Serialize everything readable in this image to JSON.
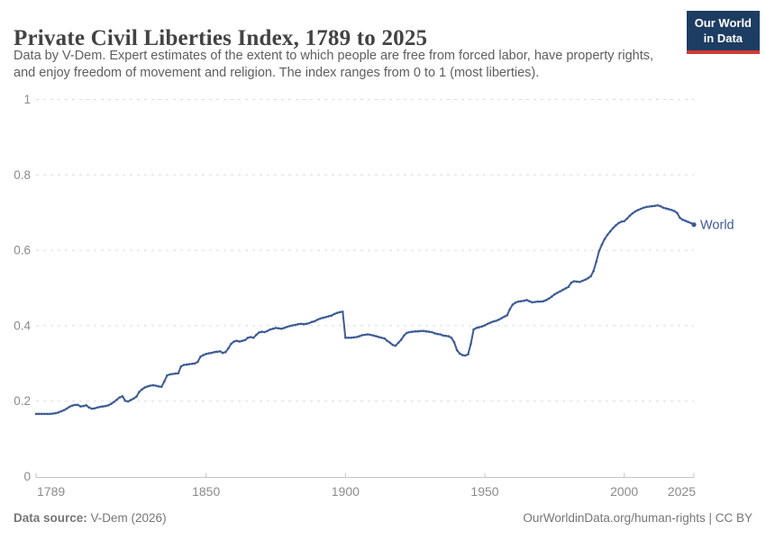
{
  "header": {
    "title": "Private Civil Liberties Index, 1789 to 2025",
    "subtitle_lines": [
      "Data by V-Dem. Expert estimates of the extent to which people are free from forced labor, have property rights,",
      "and enjoy freedom of movement and religion. The index ranges from 0 to 1 (most liberties)."
    ],
    "logo_lines": [
      "Our World",
      "in Data"
    ]
  },
  "chart_data": {
    "type": "line",
    "title": "Private Civil Liberties Index, 1789 to 2025",
    "xlabel": "",
    "ylabel": "",
    "xlim": [
      1789,
      2025
    ],
    "ylim": [
      0,
      1
    ],
    "x_ticks": [
      "1789",
      "1850",
      "1900",
      "1950",
      "2000",
      "2025"
    ],
    "y_ticks": [
      "0",
      "0.2",
      "0.4",
      "0.6",
      "0.8",
      "1"
    ],
    "grid": "horizontal-dashed",
    "legend_position": "end-of-line-label",
    "series": [
      {
        "name": "World",
        "color": "#3d5c94",
        "start_year": 1789,
        "end_year": 2025,
        "values": [
          0.166,
          0.166,
          0.166,
          0.166,
          0.166,
          0.166,
          0.167,
          0.168,
          0.17,
          0.173,
          0.176,
          0.18,
          0.185,
          0.188,
          0.19,
          0.19,
          0.186,
          0.187,
          0.189,
          0.183,
          0.18,
          0.181,
          0.183,
          0.185,
          0.186,
          0.187,
          0.189,
          0.193,
          0.198,
          0.204,
          0.21,
          0.213,
          0.201,
          0.199,
          0.203,
          0.207,
          0.212,
          0.224,
          0.231,
          0.236,
          0.239,
          0.241,
          0.242,
          0.241,
          0.239,
          0.238,
          0.252,
          0.268,
          0.271,
          0.272,
          0.273,
          0.274,
          0.292,
          0.296,
          0.297,
          0.298,
          0.299,
          0.3,
          0.304,
          0.318,
          0.322,
          0.325,
          0.327,
          0.328,
          0.33,
          0.331,
          0.332,
          0.328,
          0.33,
          0.34,
          0.352,
          0.358,
          0.36,
          0.358,
          0.36,
          0.362,
          0.368,
          0.37,
          0.368,
          0.376,
          0.382,
          0.384,
          0.383,
          0.386,
          0.39,
          0.392,
          0.394,
          0.393,
          0.392,
          0.394,
          0.397,
          0.399,
          0.401,
          0.402,
          0.404,
          0.405,
          0.404,
          0.405,
          0.407,
          0.41,
          0.412,
          0.416,
          0.419,
          0.421,
          0.423,
          0.425,
          0.427,
          0.431,
          0.434,
          0.436,
          0.437,
          0.368,
          0.368,
          0.368,
          0.369,
          0.37,
          0.372,
          0.375,
          0.376,
          0.377,
          0.376,
          0.374,
          0.372,
          0.37,
          0.368,
          0.366,
          0.36,
          0.355,
          0.349,
          0.347,
          0.355,
          0.363,
          0.374,
          0.381,
          0.383,
          0.384,
          0.385,
          0.385,
          0.386,
          0.386,
          0.385,
          0.384,
          0.383,
          0.38,
          0.378,
          0.377,
          0.374,
          0.373,
          0.372,
          0.368,
          0.356,
          0.335,
          0.326,
          0.322,
          0.321,
          0.324,
          0.352,
          0.39,
          0.394,
          0.396,
          0.398,
          0.401,
          0.405,
          0.408,
          0.411,
          0.413,
          0.416,
          0.42,
          0.424,
          0.428,
          0.444,
          0.456,
          0.461,
          0.464,
          0.465,
          0.466,
          0.468,
          0.465,
          0.462,
          0.463,
          0.464,
          0.464,
          0.465,
          0.468,
          0.472,
          0.477,
          0.483,
          0.487,
          0.491,
          0.495,
          0.499,
          0.503,
          0.514,
          0.518,
          0.517,
          0.516,
          0.519,
          0.522,
          0.526,
          0.531,
          0.545,
          0.57,
          0.598,
          0.615,
          0.63,
          0.641,
          0.65,
          0.659,
          0.666,
          0.672,
          0.676,
          0.677,
          0.684,
          0.692,
          0.698,
          0.703,
          0.707,
          0.71,
          0.713,
          0.715,
          0.716,
          0.717,
          0.718,
          0.719,
          0.717,
          0.713,
          0.711,
          0.709,
          0.707,
          0.704,
          0.699,
          0.686,
          0.681,
          0.678,
          0.675,
          0.672,
          0.668
        ]
      }
    ]
  },
  "footer": {
    "source_bold": "Data source:",
    "source_rest": " V-Dem (2026)",
    "credit": "OurWorldinData.org/human-rights | CC BY"
  },
  "colors": {
    "series": "#3d5c94",
    "grid": "#dcdcdc",
    "axis": "#c4c4c4",
    "tick_label": "#8b8b8b",
    "title": "#434343",
    "subtitle": "#5e5e5e",
    "footer": "#767676",
    "logo_bg": "#1d3d63",
    "logo_bar": "#d13a34"
  }
}
